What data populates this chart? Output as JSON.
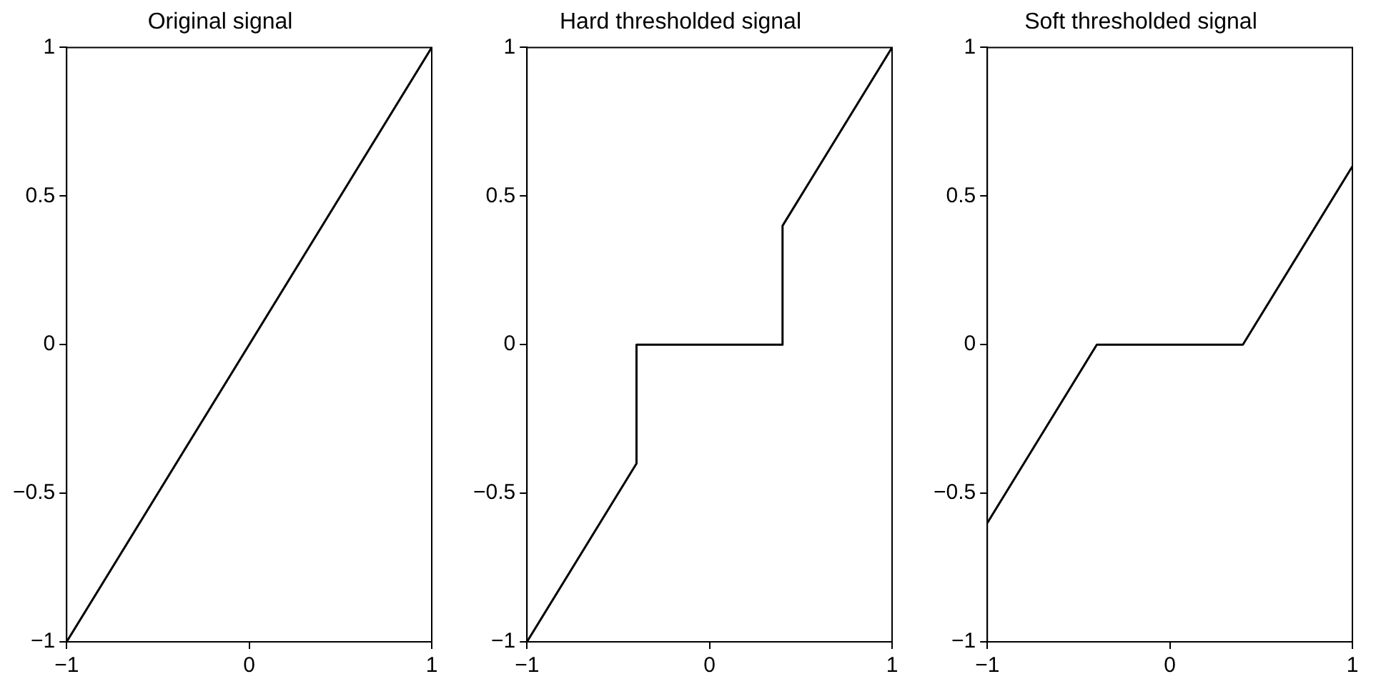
{
  "chart_data": [
    {
      "type": "line",
      "title": "Original signal",
      "series": [
        {
          "color": "#000000",
          "x": [
            -1,
            1
          ],
          "values": [
            -1,
            1
          ]
        }
      ],
      "xlim": [
        -1,
        1
      ],
      "ylim": [
        -1,
        1
      ],
      "xticks": [
        -1,
        0,
        1
      ],
      "yticks": [
        -1,
        -0.5,
        0,
        0.5,
        1
      ],
      "grid": false,
      "legend": false,
      "marker": "none",
      "line_style": "solid"
    },
    {
      "type": "line",
      "title": "Hard thresholded signal",
      "series": [
        {
          "color": "#000000",
          "x": [
            -1,
            -0.4,
            -0.4,
            0.4,
            0.4,
            1
          ],
          "values": [
            -1,
            -0.4,
            0,
            0,
            0.4,
            1
          ]
        }
      ],
      "xlim": [
        -1,
        1
      ],
      "ylim": [
        -1,
        1
      ],
      "xticks": [
        -1,
        0,
        1
      ],
      "yticks": [
        -1,
        -0.5,
        0,
        0.5,
        1
      ],
      "grid": false,
      "legend": false,
      "marker": "none",
      "line_style": "solid"
    },
    {
      "type": "line",
      "title": "Soft thresholded signal",
      "series": [
        {
          "color": "#000000",
          "x": [
            -1,
            -0.4,
            0.4,
            1
          ],
          "values": [
            -0.6,
            0,
            0,
            0.6
          ]
        }
      ],
      "xlim": [
        -1,
        1
      ],
      "ylim": [
        -1,
        1
      ],
      "xticks": [
        -1,
        0,
        1
      ],
      "yticks": [
        -1,
        -0.5,
        0,
        0.5,
        1
      ],
      "grid": false,
      "legend": false,
      "marker": "none",
      "line_style": "solid"
    }
  ]
}
